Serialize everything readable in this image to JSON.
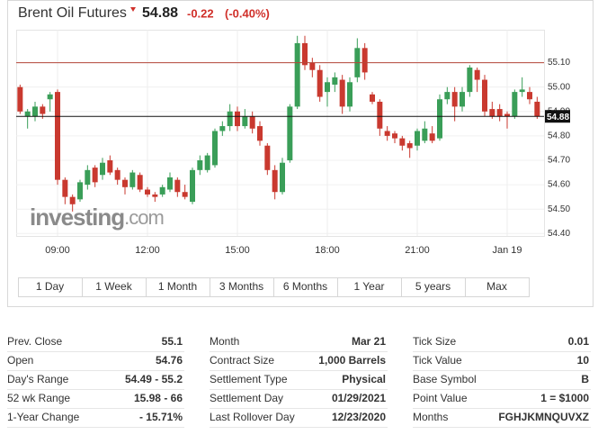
{
  "header": {
    "title": "Brent Oil Futures",
    "price": "54.88",
    "change": "-0.22",
    "change_pct": "(-0.40%)"
  },
  "chart_data": {
    "type": "candlestick",
    "watermark": [
      "investing",
      ".com"
    ],
    "x": [
      7.75,
      8,
      8.25,
      8.5,
      8.75,
      9,
      9.25,
      9.5,
      9.75,
      10,
      10.25,
      10.5,
      10.75,
      11,
      11.25,
      11.5,
      11.75,
      12,
      12.25,
      12.5,
      12.75,
      13,
      13.25,
      13.5,
      13.75,
      14,
      14.25,
      14.5,
      14.75,
      15,
      15.25,
      15.5,
      15.75,
      16,
      16.25,
      16.5,
      16.75,
      17,
      17.25,
      17.5,
      17.75,
      18,
      18.25,
      18.5,
      18.75,
      19,
      19.25,
      19.5,
      19.75,
      20,
      20.25,
      20.5,
      20.75,
      21,
      21.25,
      21.5,
      21.75,
      22,
      22.25,
      22.5,
      22.75,
      23,
      23.25,
      23.5,
      23.75,
      24,
      24.25,
      24.5,
      24.75,
      25
    ],
    "open": [
      55.0,
      54.88,
      54.88,
      54.92,
      54.95,
      54.98,
      54.62,
      54.55,
      54.54,
      54.6,
      54.67,
      54.64,
      54.7,
      54.66,
      54.62,
      54.59,
      54.64,
      54.58,
      54.56,
      54.56,
      54.58,
      54.62,
      54.57,
      54.53,
      54.66,
      54.66,
      54.68,
      54.82,
      54.84,
      54.9,
      54.84,
      54.88,
      54.84,
      54.76,
      54.66,
      54.57,
      54.7,
      54.92,
      55.18,
      55.1,
      55.07,
      54.98,
      55.01,
      55.03,
      54.92,
      55.04,
      55.16,
      54.97,
      54.94,
      54.82,
      54.81,
      54.79,
      54.77,
      54.76,
      54.78,
      54.81,
      54.79,
      54.95,
      54.98,
      54.92,
      54.98,
      55.07,
      55.03,
      54.91,
      54.91,
      54.89,
      54.88,
      54.98,
      54.98,
      54.94
    ],
    "high": [
      55.01,
      54.91,
      54.94,
      54.93,
      54.98,
      54.99,
      54.63,
      54.56,
      54.62,
      54.68,
      54.68,
      54.71,
      54.72,
      54.67,
      54.63,
      54.66,
      54.65,
      54.59,
      54.57,
      54.6,
      54.65,
      54.63,
      54.6,
      54.67,
      54.72,
      54.73,
      54.83,
      54.86,
      54.93,
      54.92,
      54.91,
      54.9,
      54.86,
      54.77,
      54.68,
      54.71,
      54.93,
      55.21,
      55.21,
      55.12,
      55.09,
      55.04,
      55.06,
      55.05,
      55.04,
      55.2,
      55.18,
      54.98,
      54.95,
      54.84,
      54.82,
      54.8,
      54.78,
      54.83,
      54.86,
      54.84,
      54.97,
      55.0,
      55.0,
      55.0,
      55.09,
      55.08,
      55.05,
      54.94,
      54.93,
      54.9,
      54.99,
      55.04,
      55.0,
      54.96
    ],
    "low": [
      54.89,
      54.83,
      54.86,
      54.87,
      54.9,
      54.6,
      54.52,
      54.49,
      54.53,
      54.58,
      54.59,
      54.62,
      54.64,
      54.6,
      54.56,
      54.58,
      54.57,
      54.55,
      54.53,
      54.55,
      54.57,
      54.55,
      54.54,
      54.52,
      54.64,
      54.65,
      54.67,
      54.8,
      54.82,
      54.82,
      54.83,
      54.81,
      54.76,
      54.64,
      54.54,
      54.56,
      54.69,
      54.91,
      55.07,
      55.04,
      54.94,
      54.92,
      54.98,
      54.89,
      54.9,
      55.02,
      55.03,
      54.93,
      54.8,
      54.78,
      54.77,
      54.74,
      54.71,
      54.74,
      54.77,
      54.77,
      54.78,
      54.93,
      54.86,
      54.9,
      54.96,
      54.98,
      54.88,
      54.87,
      54.86,
      54.83,
      54.87,
      54.96,
      54.93,
      54.87
    ],
    "close": [
      54.9,
      54.9,
      54.92,
      54.89,
      54.97,
      54.62,
      54.55,
      54.52,
      54.61,
      54.66,
      54.61,
      54.69,
      54.65,
      54.62,
      54.59,
      54.65,
      54.58,
      54.56,
      54.55,
      54.59,
      54.63,
      54.57,
      54.55,
      54.66,
      54.7,
      54.72,
      54.82,
      54.84,
      54.9,
      54.84,
      54.88,
      54.83,
      54.78,
      54.66,
      54.57,
      54.69,
      54.92,
      55.18,
      55.09,
      55.07,
      54.96,
      55.02,
      55.04,
      54.92,
      55.02,
      55.16,
      55.06,
      54.94,
      54.83,
      54.8,
      54.79,
      54.76,
      54.75,
      54.82,
      54.83,
      54.78,
      54.95,
      54.98,
      54.92,
      54.98,
      55.08,
      55.03,
      54.9,
      54.88,
      54.88,
      54.88,
      54.98,
      54.99,
      54.95,
      54.88
    ],
    "up_color": "#3a9e58",
    "down_color": "#c9392f",
    "xlim": [
      7.62,
      25.23
    ],
    "xticks": [
      {
        "value": 9,
        "label": "09:00"
      },
      {
        "value": 12,
        "label": "12:00"
      },
      {
        "value": 15,
        "label": "15:00"
      },
      {
        "value": 18,
        "label": "18:00"
      },
      {
        "value": 21,
        "label": "21:00"
      },
      {
        "value": 24,
        "label": "Jan 19"
      }
    ],
    "ylim": [
      54.39,
      55.235
    ],
    "yticks": [
      {
        "value": 54.4,
        "label": "54.40"
      },
      {
        "value": 54.5,
        "label": "54.50"
      },
      {
        "value": 54.6,
        "label": "54.60"
      },
      {
        "value": 54.7,
        "label": "54.70"
      },
      {
        "value": 54.8,
        "label": "54.80"
      },
      {
        "value": 54.9,
        "label": "54.90"
      },
      {
        "value": 55.0,
        "label": "55.00"
      },
      {
        "value": 55.1,
        "label": "55.10"
      }
    ],
    "grid": true,
    "ref_lines": [
      {
        "value": 55.1,
        "color": "#b5473a"
      },
      {
        "value": 54.88,
        "label": "54.88",
        "color": "#111111"
      }
    ]
  },
  "range_buttons": [
    "1 Day",
    "1 Week",
    "1 Month",
    "3 Months",
    "6 Months",
    "1 Year",
    "5 years",
    "Max"
  ],
  "stats": [
    [
      [
        "Prev. Close",
        "55.1"
      ],
      [
        "Open",
        "54.76"
      ],
      [
        "Day's Range",
        "54.49 - 55.2"
      ],
      [
        "52 wk Range",
        "15.98 - 66"
      ],
      [
        "1-Year Change",
        "- 15.71%"
      ]
    ],
    [
      [
        "Month",
        "Mar 21"
      ],
      [
        "Contract Size",
        "1,000 Barrels"
      ],
      [
        "Settlement Type",
        "Physical"
      ],
      [
        "Settlement Day",
        "01/29/2021"
      ],
      [
        "Last Rollover Day",
        "12/23/2020"
      ]
    ],
    [
      [
        "Tick Size",
        "0.01"
      ],
      [
        "Tick Value",
        "10"
      ],
      [
        "Base Symbol",
        "B"
      ],
      [
        "Point Value",
        "1 = $1000"
      ],
      [
        "Months",
        "FGHJKMNQUVXZ"
      ]
    ]
  ]
}
